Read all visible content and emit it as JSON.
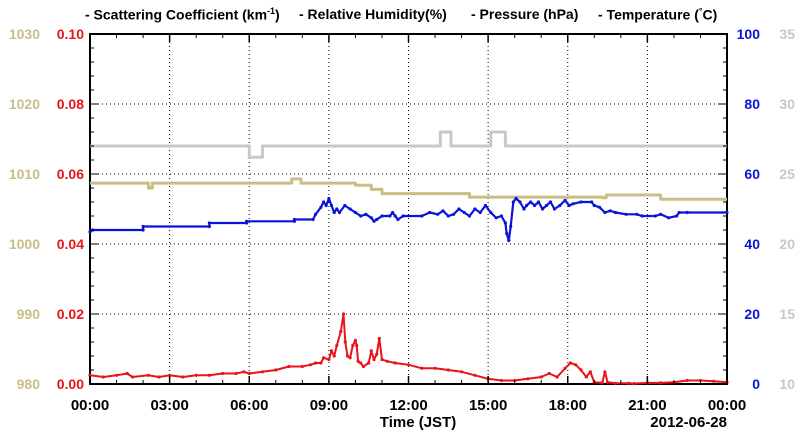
{
  "chart_data": {
    "type": "line",
    "xlabel": "Time (JST)",
    "date_label": "2012-06-28",
    "x_ticks": [
      "00:00",
      "03:00",
      "06:00",
      "09:00",
      "12:00",
      "15:00",
      "18:00",
      "21:00",
      "00:00"
    ],
    "xlim_hours": [
      0,
      24
    ],
    "grid": true,
    "legend": [
      {
        "text": "- Scattering Coefficient (km",
        "sup": "-1",
        "after": ")",
        "color": "#e8141b"
      },
      {
        "text": "- Relative Humidity(%)",
        "color": "#0a14d8"
      },
      {
        "text": "- Pressure (hPa)",
        "color": "#c8be86"
      },
      {
        "text": "- Temperature (",
        "sup": "°",
        "after": "C)",
        "color": "#c8c8c8"
      }
    ],
    "axes": {
      "pressure": {
        "ticks": [
          "980",
          "990",
          "1000",
          "1010",
          "1020",
          "1030"
        ],
        "ylim": [
          980,
          1030
        ],
        "color": "#c8be86"
      },
      "scattering": {
        "ticks": [
          "0.00",
          "0.02",
          "0.04",
          "0.06",
          "0.08",
          "0.10"
        ],
        "ylim": [
          0,
          0.1
        ],
        "color": "#e8141b"
      },
      "humidity": {
        "ticks": [
          "0",
          "20",
          "40",
          "60",
          "80",
          "100"
        ],
        "ylim": [
          0,
          100
        ],
        "color": "#0a14d8"
      },
      "temperature": {
        "ticks": [
          "10",
          "15",
          "20",
          "25",
          "30",
          "35"
        ],
        "ylim": [
          10,
          35
        ],
        "color": "#c8c8c8"
      }
    },
    "series": [
      {
        "key": "temperature",
        "axis": "temperature",
        "color": "#c8c8c8",
        "points": [
          [
            0,
            27.0
          ],
          [
            6.0,
            27.0
          ],
          [
            6.0,
            26.2
          ],
          [
            6.5,
            26.2
          ],
          [
            6.5,
            27.0
          ],
          [
            13.2,
            27.0
          ],
          [
            13.2,
            28.0
          ],
          [
            13.6,
            28.0
          ],
          [
            13.6,
            27.0
          ],
          [
            15.1,
            27.0
          ],
          [
            15.1,
            28.0
          ],
          [
            15.65,
            28.0
          ],
          [
            15.65,
            27.0
          ],
          [
            24,
            27.0
          ]
        ]
      },
      {
        "key": "pressure",
        "axis": "pressure",
        "color": "#c8be86",
        "points": [
          [
            0,
            1008.7
          ],
          [
            2.2,
            1008.7
          ],
          [
            2.2,
            1008.0
          ],
          [
            2.35,
            1008.0
          ],
          [
            2.35,
            1008.7
          ],
          [
            7.6,
            1008.7
          ],
          [
            7.6,
            1009.3
          ],
          [
            7.95,
            1009.3
          ],
          [
            7.95,
            1008.7
          ],
          [
            10.0,
            1008.7
          ],
          [
            10.0,
            1008.4
          ],
          [
            10.6,
            1008.4
          ],
          [
            10.6,
            1007.8
          ],
          [
            11.0,
            1007.8
          ],
          [
            11.0,
            1007.2
          ],
          [
            14.3,
            1007.2
          ],
          [
            14.3,
            1006.7
          ],
          [
            19.3,
            1006.7
          ],
          [
            19.3,
            1006.6
          ],
          [
            19.45,
            1006.6
          ],
          [
            19.45,
            1007.0
          ],
          [
            21.5,
            1007.0
          ],
          [
            21.5,
            1006.4
          ],
          [
            24,
            1006.4
          ]
        ]
      },
      {
        "key": "humidity",
        "axis": "humidity",
        "color": "#0a14d8",
        "points": [
          [
            0,
            43.5
          ],
          [
            0.1,
            44.0
          ],
          [
            2.0,
            44.0
          ],
          [
            2.0,
            45.0
          ],
          [
            4.5,
            45.0
          ],
          [
            4.5,
            46.0
          ],
          [
            5.9,
            46.0
          ],
          [
            5.9,
            46.5
          ],
          [
            7.7,
            46.5
          ],
          [
            7.7,
            47.0
          ],
          [
            8.4,
            47.0
          ],
          [
            8.5,
            48.5
          ],
          [
            8.7,
            50.5
          ],
          [
            8.8,
            52.0
          ],
          [
            8.9,
            51.0
          ],
          [
            9.0,
            53.0
          ],
          [
            9.1,
            51.0
          ],
          [
            9.2,
            49.0
          ],
          [
            9.3,
            50.0
          ],
          [
            9.4,
            49.0
          ],
          [
            9.6,
            51.0
          ],
          [
            9.8,
            50.0
          ],
          [
            10.0,
            49.0
          ],
          [
            10.2,
            48.0
          ],
          [
            10.4,
            48.5
          ],
          [
            10.6,
            47.5
          ],
          [
            10.7,
            46.5
          ],
          [
            10.8,
            47.0
          ],
          [
            11.0,
            48.0
          ],
          [
            11.3,
            48.0
          ],
          [
            11.4,
            49.0
          ],
          [
            11.5,
            48.0
          ],
          [
            11.6,
            47.0
          ],
          [
            11.8,
            48.0
          ],
          [
            12.5,
            48.0
          ],
          [
            12.8,
            49.0
          ],
          [
            13.1,
            48.5
          ],
          [
            13.3,
            49.5
          ],
          [
            13.5,
            48.0
          ],
          [
            13.7,
            48.5
          ],
          [
            13.9,
            50.0
          ],
          [
            14.1,
            49.0
          ],
          [
            14.3,
            48.0
          ],
          [
            14.5,
            50.0
          ],
          [
            14.7,
            49.0
          ],
          [
            14.9,
            51.0
          ],
          [
            15.1,
            49.0
          ],
          [
            15.3,
            47.5
          ],
          [
            15.5,
            48.0
          ],
          [
            15.65,
            46.0
          ],
          [
            15.7,
            43.0
          ],
          [
            15.78,
            41.0
          ],
          [
            15.85,
            45.0
          ],
          [
            15.95,
            52.0
          ],
          [
            16.05,
            53.0
          ],
          [
            16.2,
            52.0
          ],
          [
            16.35,
            50.0
          ],
          [
            16.45,
            51.0
          ],
          [
            16.6,
            52.0
          ],
          [
            16.75,
            51.0
          ],
          [
            16.9,
            52.0
          ],
          [
            17.05,
            50.0
          ],
          [
            17.2,
            51.0
          ],
          [
            17.35,
            52.0
          ],
          [
            17.5,
            50.0
          ],
          [
            17.7,
            51.0
          ],
          [
            17.9,
            52.5
          ],
          [
            18.05,
            51.0
          ],
          [
            18.2,
            51.5
          ],
          [
            18.5,
            52.0
          ],
          [
            18.9,
            52.0
          ],
          [
            19.0,
            51.0
          ],
          [
            19.2,
            50.5
          ],
          [
            19.4,
            49.0
          ],
          [
            19.6,
            49.5
          ],
          [
            19.8,
            49.0
          ],
          [
            20.2,
            48.5
          ],
          [
            20.6,
            48.5
          ],
          [
            20.8,
            48.0
          ],
          [
            21.3,
            48.0
          ],
          [
            21.5,
            48.5
          ],
          [
            21.8,
            47.5
          ],
          [
            22.1,
            48.0
          ],
          [
            22.2,
            49.0
          ],
          [
            22.5,
            49.0
          ],
          [
            24,
            49.0
          ]
        ]
      },
      {
        "key": "scattering",
        "axis": "scattering",
        "color": "#e8141b",
        "points": [
          [
            0,
            0.0025
          ],
          [
            0.5,
            0.002
          ],
          [
            1.0,
            0.0025
          ],
          [
            1.4,
            0.003
          ],
          [
            1.6,
            0.002
          ],
          [
            2.2,
            0.0025
          ],
          [
            2.6,
            0.002
          ],
          [
            3.0,
            0.0025
          ],
          [
            3.5,
            0.002
          ],
          [
            4.0,
            0.0025
          ],
          [
            4.5,
            0.0025
          ],
          [
            5.0,
            0.003
          ],
          [
            5.5,
            0.003
          ],
          [
            5.8,
            0.0035
          ],
          [
            6.0,
            0.003
          ],
          [
            6.5,
            0.0035
          ],
          [
            7.0,
            0.004
          ],
          [
            7.5,
            0.005
          ],
          [
            8.0,
            0.005
          ],
          [
            8.3,
            0.0055
          ],
          [
            8.5,
            0.006
          ],
          [
            8.7,
            0.006
          ],
          [
            8.8,
            0.0075
          ],
          [
            9.0,
            0.007
          ],
          [
            9.1,
            0.0095
          ],
          [
            9.2,
            0.008
          ],
          [
            9.3,
            0.011
          ],
          [
            9.45,
            0.015
          ],
          [
            9.55,
            0.02
          ],
          [
            9.62,
            0.012
          ],
          [
            9.7,
            0.008
          ],
          [
            9.8,
            0.0075
          ],
          [
            9.9,
            0.011
          ],
          [
            10.0,
            0.0125
          ],
          [
            10.05,
            0.011
          ],
          [
            10.1,
            0.0065
          ],
          [
            10.2,
            0.006
          ],
          [
            10.3,
            0.005
          ],
          [
            10.5,
            0.006
          ],
          [
            10.6,
            0.0095
          ],
          [
            10.7,
            0.007
          ],
          [
            10.8,
            0.0085
          ],
          [
            10.9,
            0.013
          ],
          [
            11.0,
            0.007
          ],
          [
            11.2,
            0.0065
          ],
          [
            11.5,
            0.006
          ],
          [
            12.0,
            0.0055
          ],
          [
            12.5,
            0.0045
          ],
          [
            13.0,
            0.0045
          ],
          [
            13.5,
            0.004
          ],
          [
            14.0,
            0.0035
          ],
          [
            14.5,
            0.0025
          ],
          [
            15.0,
            0.0015
          ],
          [
            15.5,
            0.001
          ],
          [
            16.0,
            0.001
          ],
          [
            16.5,
            0.0015
          ],
          [
            17.0,
            0.002
          ],
          [
            17.3,
            0.003
          ],
          [
            17.6,
            0.002
          ],
          [
            17.9,
            0.0045
          ],
          [
            18.1,
            0.006
          ],
          [
            18.3,
            0.0055
          ],
          [
            18.5,
            0.004
          ],
          [
            18.7,
            0.002
          ],
          [
            18.85,
            0.0035
          ],
          [
            19.0,
            0.0005
          ],
          [
            19.3,
            0.0003
          ],
          [
            19.4,
            0.0035
          ],
          [
            19.5,
            0.0005
          ],
          [
            19.8,
            0.0002
          ],
          [
            20.3,
            0.0002
          ],
          [
            20.5,
            0.0001
          ],
          [
            21.0,
            0.0003
          ],
          [
            21.5,
            0.0003
          ],
          [
            22.0,
            0.0005
          ],
          [
            22.5,
            0.001
          ],
          [
            23.0,
            0.001
          ],
          [
            23.5,
            0.0008
          ],
          [
            24,
            0.0005
          ]
        ]
      }
    ]
  }
}
